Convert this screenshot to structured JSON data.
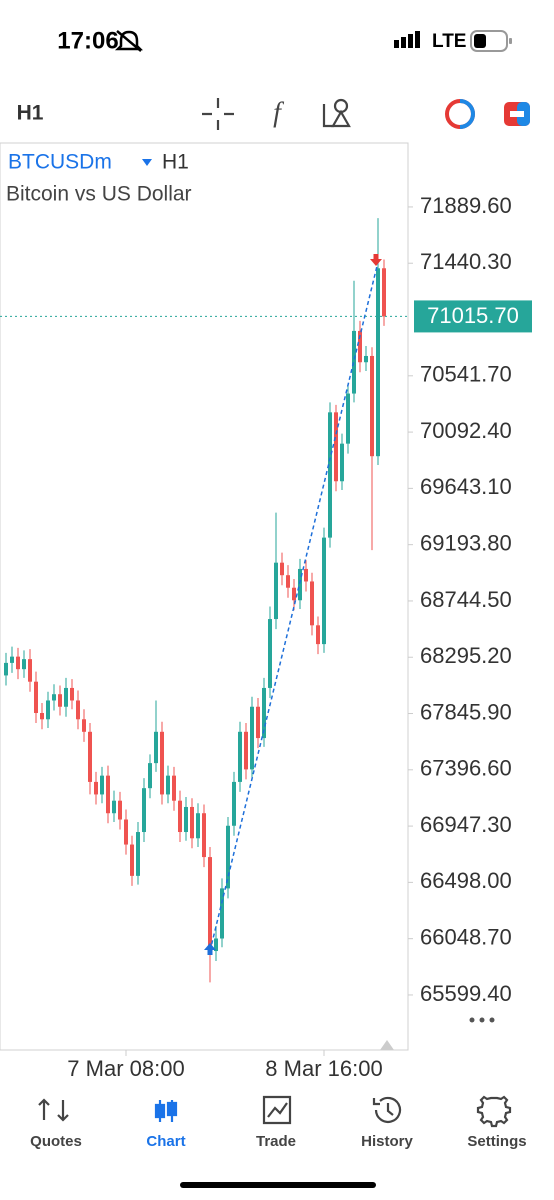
{
  "status_bar": {
    "time": "17:06",
    "network": "LTE"
  },
  "toolbar": {
    "timeframe": "H1"
  },
  "chart_data": {
    "type": "candlestick",
    "symbol": "BTCUSDm",
    "timeframe": "H1",
    "description": "Bitcoin vs US Dollar",
    "up_color": "#26a69a",
    "down_color": "#ef5350",
    "open": [
      68150,
      68250,
      68300,
      68200,
      68280,
      68100,
      67850,
      67800,
      67950,
      68000,
      67900,
      68050,
      67950,
      67800,
      67700,
      67300,
      67200,
      67350,
      67050,
      67150,
      67000,
      66800,
      66550,
      66900,
      67250,
      67450,
      67700,
      67200,
      67350,
      67150,
      66900,
      67100,
      66850,
      67050,
      66700,
      65950,
      66050,
      66450,
      66950,
      67300,
      67700,
      67400,
      67900,
      67650,
      68050,
      68600,
      69050,
      68950,
      68850,
      68750,
      69000,
      68900,
      68550,
      68400,
      69250,
      70250,
      69700,
      70000,
      70400,
      70900,
      70650,
      70700,
      69900,
      71400
    ],
    "high": [
      68330,
      68380,
      68370,
      68350,
      68360,
      68180,
      67930,
      68020,
      68080,
      68070,
      68130,
      68120,
      68030,
      67880,
      67770,
      67380,
      67420,
      67430,
      67230,
      67220,
      67080,
      66870,
      66980,
      67330,
      67520,
      67950,
      67780,
      67430,
      67420,
      67230,
      67180,
      67170,
      67130,
      67120,
      66780,
      66150,
      66530,
      67020,
      67380,
      67780,
      67770,
      67980,
      67970,
      68130,
      68700,
      69450,
      69130,
      69030,
      68920,
      69080,
      69070,
      68970,
      68620,
      69330,
      70330,
      70310,
      70080,
      70480,
      71300,
      70980,
      70780,
      70770,
      71800,
      71470
    ],
    "low": [
      68070,
      68170,
      68120,
      68130,
      68020,
      67770,
      67720,
      67730,
      67870,
      67830,
      67820,
      67880,
      67720,
      67620,
      67200,
      67120,
      67130,
      66970,
      66980,
      66920,
      66720,
      66470,
      66480,
      66820,
      67170,
      67380,
      67120,
      67130,
      67070,
      66820,
      66830,
      66770,
      66780,
      66620,
      65700,
      65870,
      65980,
      66370,
      66870,
      67220,
      67320,
      67330,
      67570,
      67580,
      67970,
      68520,
      68870,
      68770,
      68670,
      68680,
      68820,
      68470,
      68320,
      68330,
      69170,
      69620,
      69630,
      69920,
      70330,
      70570,
      70580,
      69150,
      69830,
      70940
    ],
    "close": [
      68250,
      68300,
      68200,
      68280,
      68100,
      67850,
      67800,
      67950,
      68000,
      67900,
      68050,
      67950,
      67800,
      67700,
      67300,
      67200,
      67350,
      67050,
      67150,
      67000,
      66800,
      66550,
      66900,
      67250,
      67450,
      67700,
      67200,
      67350,
      67150,
      66900,
      67100,
      66850,
      67050,
      66700,
      65950,
      66050,
      66450,
      66950,
      67300,
      67700,
      67400,
      67900,
      67650,
      68050,
      68600,
      69050,
      68950,
      68850,
      68750,
      69000,
      68900,
      68550,
      68400,
      69250,
      70250,
      69700,
      70000,
      70400,
      70900,
      70650,
      70700,
      69900,
      71400,
      71015.7
    ],
    "ylim": [
      65160,
      72400
    ],
    "yticks": [
      {
        "value": 71889.6,
        "label": "71889.60"
      },
      {
        "value": 71440.3,
        "label": "71440.30"
      },
      {
        "value": 70541.7,
        "label": "70541.70"
      },
      {
        "value": 70092.4,
        "label": "70092.40"
      },
      {
        "value": 69643.1,
        "label": "69643.10"
      },
      {
        "value": 69193.8,
        "label": "69193.80"
      },
      {
        "value": 68744.5,
        "label": "68744.50"
      },
      {
        "value": 68295.2,
        "label": "68295.20"
      },
      {
        "value": 67845.9,
        "label": "67845.90"
      },
      {
        "value": 67396.6,
        "label": "67396.60"
      },
      {
        "value": 66947.3,
        "label": "66947.30"
      },
      {
        "value": 66498,
        "label": "66498.00"
      },
      {
        "value": 66048.7,
        "label": "66048.70"
      },
      {
        "value": 65599.4,
        "label": "65599.40"
      }
    ],
    "xticks": [
      {
        "value": 20,
        "label": "7 Mar 08:00"
      },
      {
        "value": 53,
        "label": "8 Mar 16:00"
      }
    ],
    "current_price": {
      "value": 71015.7,
      "label": "71015.70"
    },
    "entry": {
      "x": 34,
      "price": 65950
    },
    "exit": {
      "x": 62,
      "price": 71450
    },
    "trade_line_color": "#1e6fd9"
  },
  "tab_bar": {
    "tabs": [
      "Quotes",
      "Chart",
      "Trade",
      "History",
      "Settings"
    ],
    "active": 1
  }
}
